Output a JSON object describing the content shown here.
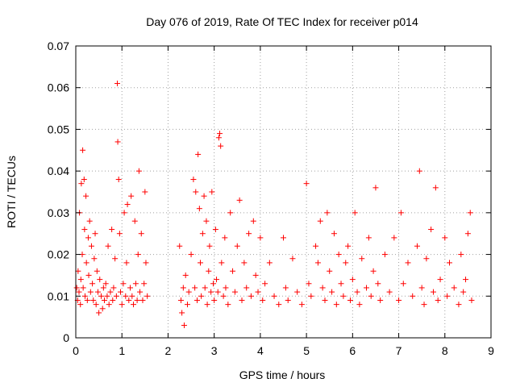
{
  "chart_data": {
    "type": "scatter",
    "title": "Day 076 of 2019, Rate Of TEC Index for receiver p014",
    "xlabel": "GPS time / hours",
    "ylabel": "ROTI / TECUs",
    "xlim": [
      0,
      9
    ],
    "ylim": [
      0,
      0.07
    ],
    "x_ticks": [
      0,
      1,
      2,
      3,
      4,
      5,
      6,
      7,
      8,
      9
    ],
    "y_ticks": [
      0,
      0.01,
      0.02,
      0.03,
      0.04,
      0.05,
      0.06,
      0.07
    ],
    "x_tick_labels": [
      "0",
      "1",
      "2",
      "3",
      "4",
      "5",
      "6",
      "7",
      "8",
      "9"
    ],
    "y_tick_labels": [
      "0",
      "0.01",
      "0.02",
      "0.03",
      "0.04",
      "0.05",
      "0.06",
      "0.07"
    ],
    "grid": true,
    "marker": "+",
    "marker_color": "#ff0000",
    "series": [
      {
        "name": "ROTI",
        "points": [
          [
            0.02,
            0.012
          ],
          [
            0.04,
            0.009
          ],
          [
            0.05,
            0.016
          ],
          [
            0.07,
            0.011
          ],
          [
            0.08,
            0.03
          ],
          [
            0.1,
            0.008
          ],
          [
            0.11,
            0.014
          ],
          [
            0.12,
            0.037
          ],
          [
            0.14,
            0.02
          ],
          [
            0.15,
            0.045
          ],
          [
            0.16,
            0.012
          ],
          [
            0.18,
            0.038
          ],
          [
            0.19,
            0.026
          ],
          [
            0.2,
            0.01
          ],
          [
            0.22,
            0.034
          ],
          [
            0.23,
            0.018
          ],
          [
            0.25,
            0.009
          ],
          [
            0.27,
            0.024
          ],
          [
            0.28,
            0.015
          ],
          [
            0.3,
            0.028
          ],
          [
            0.32,
            0.011
          ],
          [
            0.34,
            0.022
          ],
          [
            0.36,
            0.013
          ],
          [
            0.38,
            0.009
          ],
          [
            0.4,
            0.019
          ],
          [
            0.42,
            0.025
          ],
          [
            0.44,
            0.008
          ],
          [
            0.46,
            0.016
          ],
          [
            0.48,
            0.011
          ],
          [
            0.5,
            0.006
          ],
          [
            0.52,
            0.014
          ],
          [
            0.55,
            0.01
          ],
          [
            0.58,
            0.007
          ],
          [
            0.6,
            0.012
          ],
          [
            0.62,
            0.009
          ],
          [
            0.65,
            0.013
          ],
          [
            0.68,
            0.01
          ],
          [
            0.7,
            0.022
          ],
          [
            0.72,
            0.008
          ],
          [
            0.75,
            0.011
          ],
          [
            0.78,
            0.026
          ],
          [
            0.8,
            0.009
          ],
          [
            0.82,
            0.012
          ],
          [
            0.85,
            0.019
          ],
          [
            0.88,
            0.01
          ],
          [
            0.9,
            0.061
          ],
          [
            0.91,
            0.047
          ],
          [
            0.93,
            0.038
          ],
          [
            0.95,
            0.025
          ],
          [
            0.97,
            0.011
          ],
          [
            1.0,
            0.008
          ],
          [
            1.03,
            0.013
          ],
          [
            1.05,
            0.03
          ],
          [
            1.08,
            0.01
          ],
          [
            1.1,
            0.018
          ],
          [
            1.12,
            0.032
          ],
          [
            1.15,
            0.009
          ],
          [
            1.18,
            0.012
          ],
          [
            1.2,
            0.034
          ],
          [
            1.22,
            0.01
          ],
          [
            1.25,
            0.008
          ],
          [
            1.28,
            0.028
          ],
          [
            1.3,
            0.013
          ],
          [
            1.33,
            0.009
          ],
          [
            1.35,
            0.02
          ],
          [
            1.37,
            0.04
          ],
          [
            1.39,
            0.011
          ],
          [
            1.42,
            0.025
          ],
          [
            1.45,
            0.009
          ],
          [
            1.48,
            0.013
          ],
          [
            1.5,
            0.035
          ],
          [
            1.52,
            0.018
          ],
          [
            1.55,
            0.01
          ],
          [
            2.25,
            0.022
          ],
          [
            2.28,
            0.009
          ],
          [
            2.3,
            0.006
          ],
          [
            2.33,
            0.012
          ],
          [
            2.35,
            0.003
          ],
          [
            2.38,
            0.015
          ],
          [
            2.42,
            0.008
          ],
          [
            2.45,
            0.011
          ],
          [
            2.5,
            0.02
          ],
          [
            2.55,
            0.038
          ],
          [
            2.58,
            0.012
          ],
          [
            2.6,
            0.035
          ],
          [
            2.63,
            0.009
          ],
          [
            2.65,
            0.044
          ],
          [
            2.68,
            0.031
          ],
          [
            2.7,
            0.018
          ],
          [
            2.72,
            0.01
          ],
          [
            2.75,
            0.025
          ],
          [
            2.78,
            0.034
          ],
          [
            2.8,
            0.012
          ],
          [
            2.83,
            0.028
          ],
          [
            2.85,
            0.008
          ],
          [
            2.88,
            0.016
          ],
          [
            2.9,
            0.022
          ],
          [
            2.93,
            0.011
          ],
          [
            2.95,
            0.035
          ],
          [
            2.98,
            0.013
          ],
          [
            3.0,
            0.009
          ],
          [
            3.03,
            0.026
          ],
          [
            3.05,
            0.014
          ],
          [
            3.08,
            0.011
          ],
          [
            3.1,
            0.048
          ],
          [
            3.12,
            0.049
          ],
          [
            3.14,
            0.046
          ],
          [
            3.16,
            0.018
          ],
          [
            3.2,
            0.01
          ],
          [
            3.23,
            0.024
          ],
          [
            3.25,
            0.012
          ],
          [
            3.3,
            0.008
          ],
          [
            3.35,
            0.03
          ],
          [
            3.4,
            0.016
          ],
          [
            3.45,
            0.011
          ],
          [
            3.5,
            0.022
          ],
          [
            3.55,
            0.033
          ],
          [
            3.6,
            0.009
          ],
          [
            3.65,
            0.018
          ],
          [
            3.7,
            0.012
          ],
          [
            3.75,
            0.025
          ],
          [
            3.8,
            0.01
          ],
          [
            3.85,
            0.028
          ],
          [
            3.9,
            0.015
          ],
          [
            3.95,
            0.011
          ],
          [
            4.0,
            0.024
          ],
          [
            4.05,
            0.009
          ],
          [
            4.1,
            0.013
          ],
          [
            4.2,
            0.018
          ],
          [
            4.3,
            0.01
          ],
          [
            4.4,
            0.008
          ],
          [
            4.5,
            0.024
          ],
          [
            4.55,
            0.012
          ],
          [
            4.6,
            0.009
          ],
          [
            4.7,
            0.019
          ],
          [
            4.8,
            0.011
          ],
          [
            4.9,
            0.008
          ],
          [
            5.0,
            0.037
          ],
          [
            5.05,
            0.013
          ],
          [
            5.1,
            0.01
          ],
          [
            5.2,
            0.022
          ],
          [
            5.25,
            0.018
          ],
          [
            5.3,
            0.028
          ],
          [
            5.35,
            0.012
          ],
          [
            5.4,
            0.009
          ],
          [
            5.45,
            0.03
          ],
          [
            5.5,
            0.016
          ],
          [
            5.55,
            0.011
          ],
          [
            5.6,
            0.025
          ],
          [
            5.65,
            0.008
          ],
          [
            5.7,
            0.02
          ],
          [
            5.75,
            0.013
          ],
          [
            5.8,
            0.01
          ],
          [
            5.85,
            0.018
          ],
          [
            5.9,
            0.022
          ],
          [
            5.95,
            0.009
          ],
          [
            6.0,
            0.014
          ],
          [
            6.05,
            0.03
          ],
          [
            6.1,
            0.011
          ],
          [
            6.15,
            0.008
          ],
          [
            6.2,
            0.019
          ],
          [
            6.3,
            0.012
          ],
          [
            6.35,
            0.024
          ],
          [
            6.4,
            0.01
          ],
          [
            6.45,
            0.016
          ],
          [
            6.5,
            0.036
          ],
          [
            6.55,
            0.013
          ],
          [
            6.6,
            0.009
          ],
          [
            6.7,
            0.02
          ],
          [
            6.8,
            0.011
          ],
          [
            6.9,
            0.024
          ],
          [
            7.0,
            0.009
          ],
          [
            7.05,
            0.03
          ],
          [
            7.1,
            0.013
          ],
          [
            7.2,
            0.018
          ],
          [
            7.3,
            0.01
          ],
          [
            7.4,
            0.022
          ],
          [
            7.45,
            0.04
          ],
          [
            7.5,
            0.012
          ],
          [
            7.55,
            0.008
          ],
          [
            7.6,
            0.019
          ],
          [
            7.7,
            0.026
          ],
          [
            7.75,
            0.011
          ],
          [
            7.8,
            0.036
          ],
          [
            7.85,
            0.009
          ],
          [
            7.9,
            0.014
          ],
          [
            8.0,
            0.024
          ],
          [
            8.05,
            0.01
          ],
          [
            8.1,
            0.018
          ],
          [
            8.2,
            0.012
          ],
          [
            8.3,
            0.008
          ],
          [
            8.35,
            0.02
          ],
          [
            8.4,
            0.011
          ],
          [
            8.45,
            0.014
          ],
          [
            8.5,
            0.025
          ],
          [
            8.55,
            0.03
          ],
          [
            8.58,
            0.009
          ]
        ]
      }
    ]
  }
}
